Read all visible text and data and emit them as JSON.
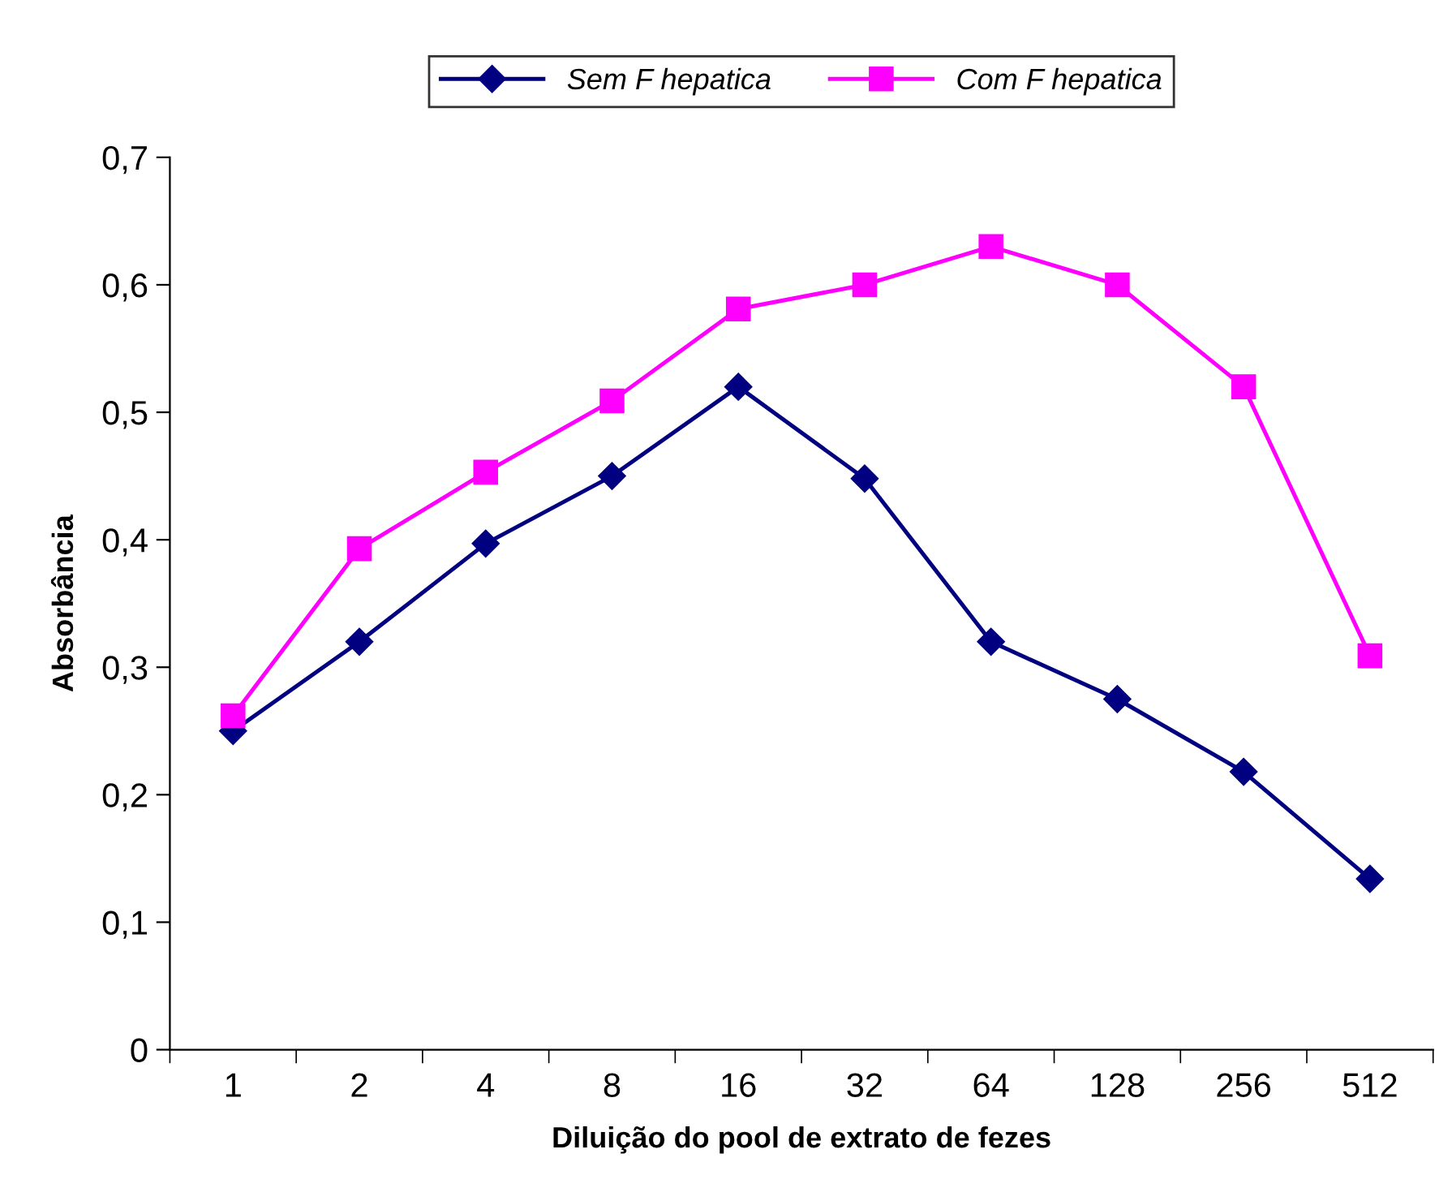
{
  "chart_data": {
    "type": "line",
    "xlabel": "Diluição do pool de extrato de fezes",
    "ylabel": "Absorbância",
    "categories": [
      "1",
      "2",
      "4",
      "8",
      "16",
      "32",
      "64",
      "128",
      "256",
      "512"
    ],
    "series": [
      {
        "name": "Sem F hepatica",
        "color": "#000080",
        "marker": "diamond",
        "values": [
          0.25,
          0.32,
          0.397,
          0.45,
          0.52,
          0.448,
          0.32,
          0.275,
          0.218,
          0.134
        ]
      },
      {
        "name": "Com F hepatica",
        "color": "#ff00ff",
        "marker": "square",
        "values": [
          0.262,
          0.393,
          0.453,
          0.509,
          0.581,
          0.6,
          0.63,
          0.6,
          0.52,
          0.309
        ]
      }
    ],
    "ylim": [
      0,
      0.7
    ],
    "yticks": [
      {
        "value": 0,
        "label": "0"
      },
      {
        "value": 0.1,
        "label": "0,1"
      },
      {
        "value": 0.2,
        "label": "0,2"
      },
      {
        "value": 0.3,
        "label": "0,3"
      },
      {
        "value": 0.4,
        "label": "0,4"
      },
      {
        "value": 0.5,
        "label": "0,5"
      },
      {
        "value": 0.6,
        "label": "0,6"
      },
      {
        "value": 0.7,
        "label": "0,7"
      }
    ],
    "grid": false,
    "legend": "top",
    "line_style": "solid"
  }
}
